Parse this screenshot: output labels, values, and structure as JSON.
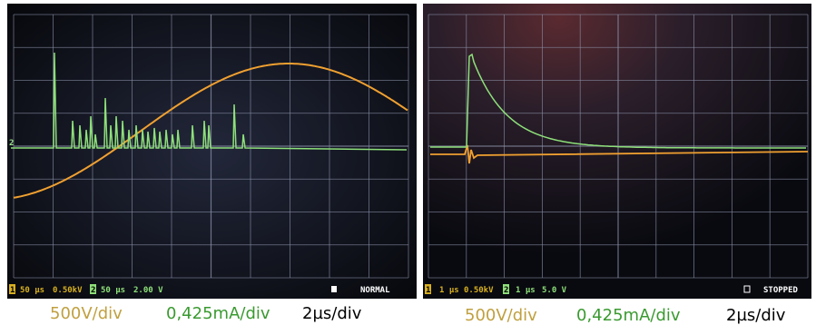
{
  "left_panel": {
    "channel_marker": "2",
    "status": {
      "ch1": "1",
      "ch1_time": "50 µs",
      "ch1_scale": "0.50kV",
      "ch2": "2",
      "ch2_time": "50 µs",
      "ch2_scale": "2.00 V",
      "mode": "NORMAL"
    },
    "caption": {
      "voltage": "500V/div",
      "current": "0,425mA/div",
      "time": "2µs/div"
    }
  },
  "right_panel": {
    "status": {
      "ch1": "1",
      "ch1_time": "1 µs",
      "ch1_scale": "0.50kV",
      "ch2": "2",
      "ch2_time": "1 µs",
      "ch2_scale": "5.0 V",
      "mode": "STOPPED"
    },
    "caption": {
      "voltage": "500V/div",
      "current": "0,425mA/div",
      "time": "2µs/div"
    }
  }
}
